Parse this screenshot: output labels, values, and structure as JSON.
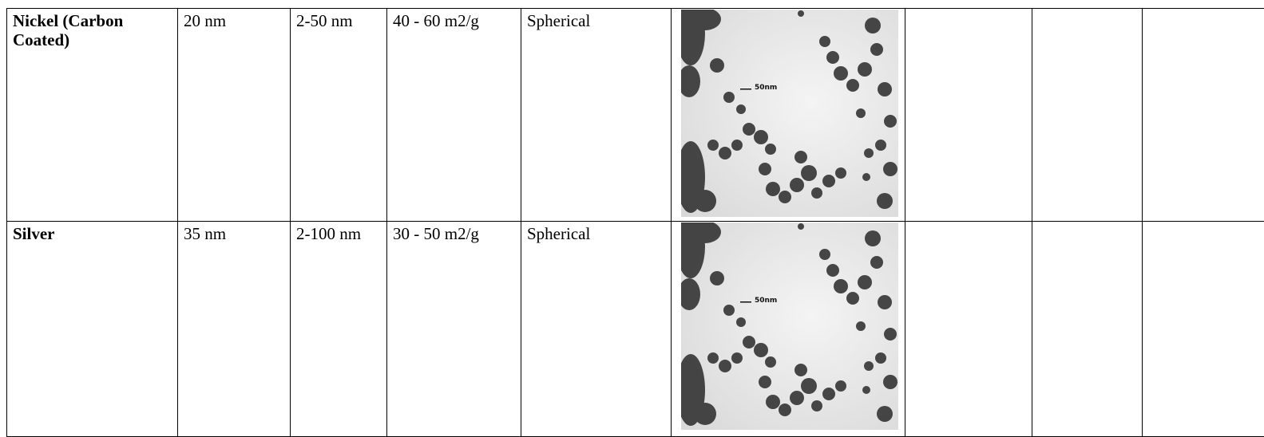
{
  "table": {
    "rows": [
      [
        "Nickel (Carbon Coated)",
        "20 nm",
        "2-50 nm",
        "40 - 60 m2/g",
        "Spherical"
      ],
      [
        "Silver",
        "35 nm",
        "2-100 nm",
        "30 - 50 m2/g",
        "Spherical"
      ]
    ]
  },
  "micrograph_scale_label": "50nm"
}
